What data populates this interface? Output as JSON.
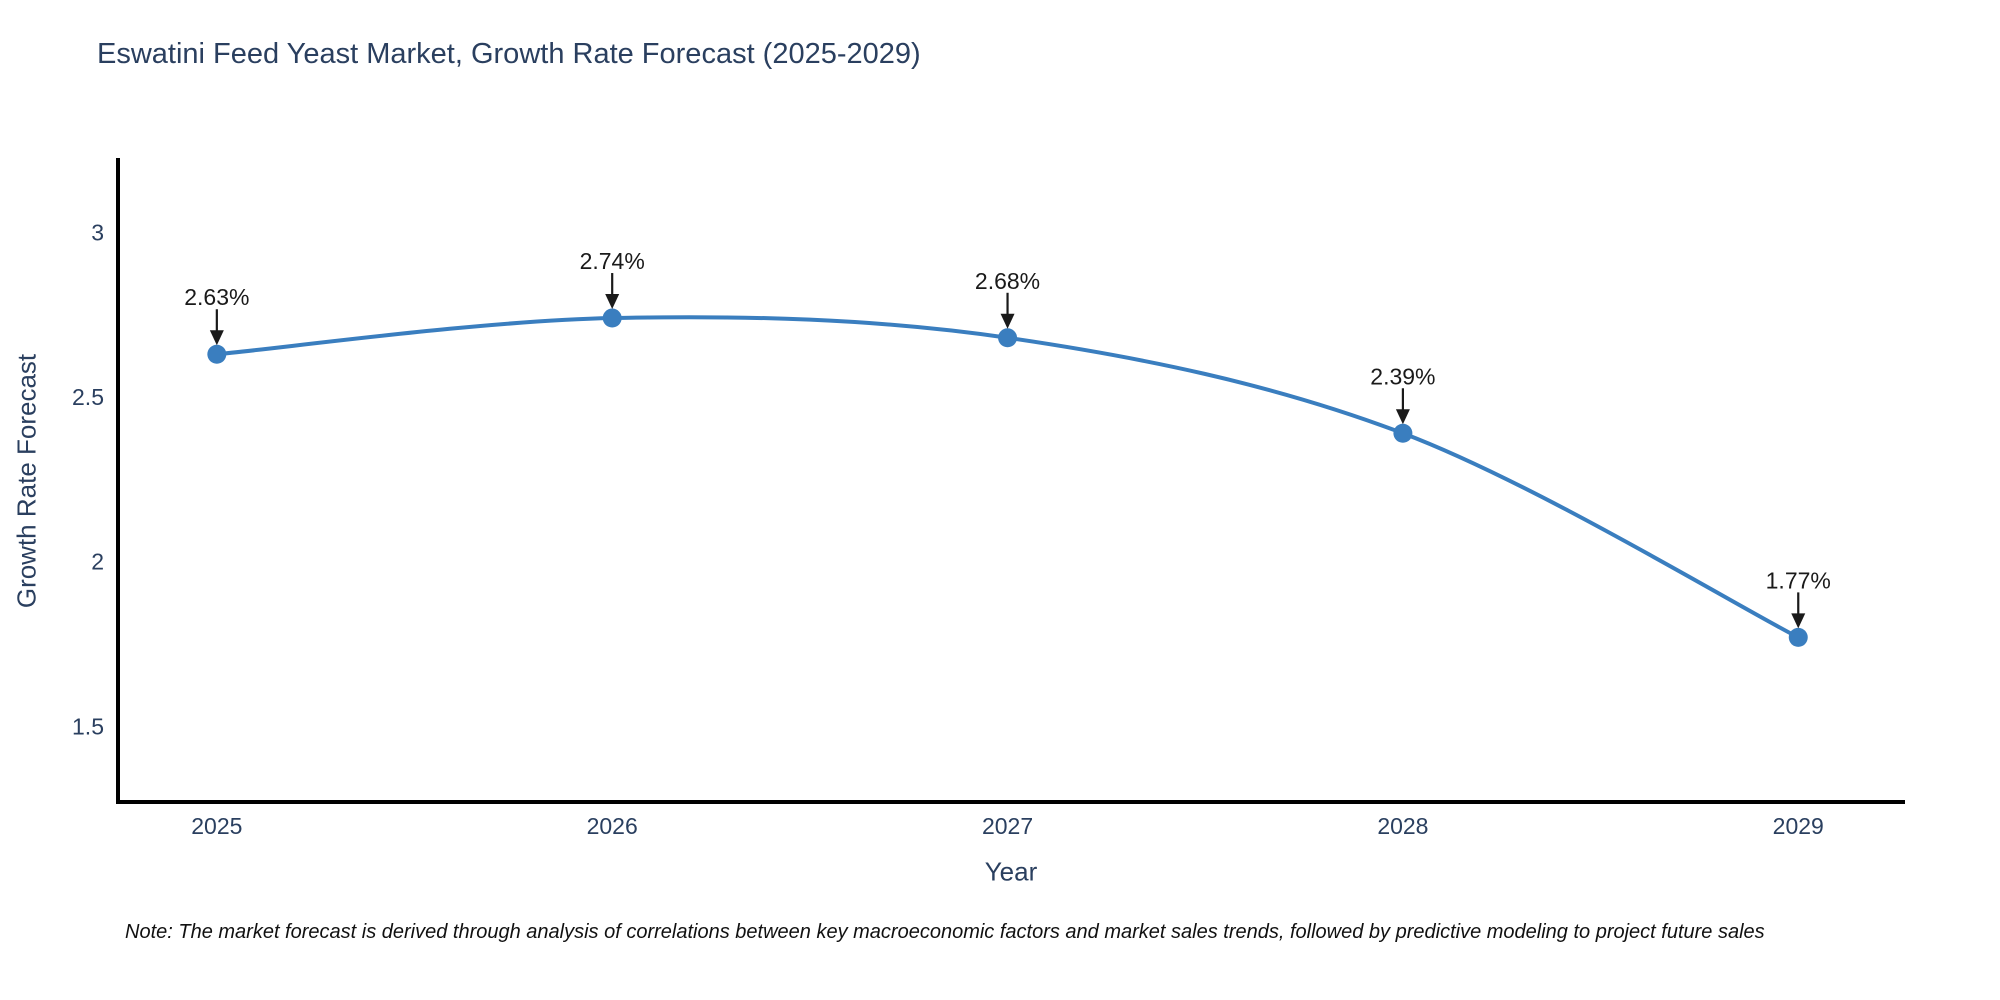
{
  "page": {
    "background": "#ffffff"
  },
  "chart_data": {
    "type": "line",
    "title": "Eswatini Feed Yeast Market, Growth Rate Forecast (2025-2029)",
    "xlabel": "Year",
    "ylabel": "Growth Rate Forecast",
    "x": [
      2025,
      2026,
      2027,
      2028,
      2029
    ],
    "values": [
      2.63,
      2.74,
      2.68,
      2.39,
      1.77
    ],
    "point_labels": [
      "2.63%",
      "2.74%",
      "2.68%",
      "2.39%",
      "1.77%"
    ],
    "xtick_labels": [
      "2025",
      "2026",
      "2027",
      "2028",
      "2029"
    ],
    "yticks": [
      1.5,
      2,
      2.5,
      3
    ],
    "ytick_labels": [
      "1.5",
      "2",
      "2.5",
      "3"
    ],
    "xlim": [
      2024.75,
      2029.27
    ],
    "ylim": [
      1.27,
      3.22
    ],
    "grid": false,
    "legend_position": "none",
    "line_shape": "spline",
    "colors": {
      "line": "#3a7ebf",
      "marker": "#3a7ebf",
      "axis": "#000000",
      "tick_text": "#2a3f5f",
      "annotation_text": "#1a1a1a",
      "annotation_arrow": "#1a1a1a"
    }
  },
  "note": {
    "text": "Note: The market forecast is derived through analysis of correlations between key macroeconomic factors and market sales trends, followed by predictive modeling to project future sales"
  }
}
